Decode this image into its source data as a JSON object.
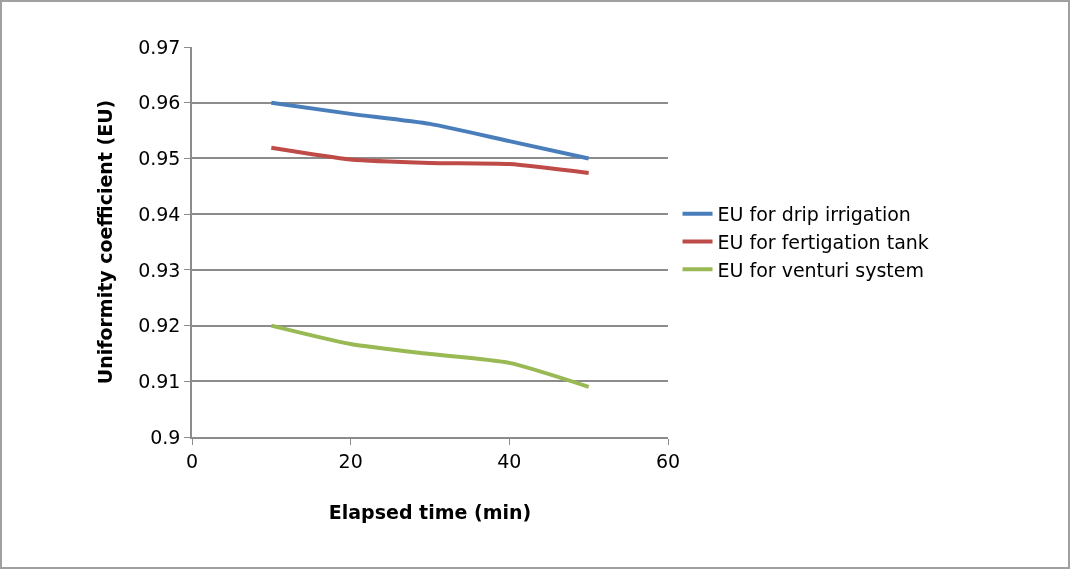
{
  "chart_data": {
    "type": "line",
    "xlabel": "Elapsed time (min)",
    "ylabel": "Uniformity coefficient (EU)",
    "x": [
      10,
      20,
      30,
      40,
      50
    ],
    "series": [
      {
        "name": "EU for drip irrigation",
        "color": "#4a7ebb",
        "values": [
          0.96,
          0.958,
          0.9562,
          0.9531,
          0.95
        ]
      },
      {
        "name": "EU for fertigation tank",
        "color": "#be4b48",
        "values": [
          0.9519,
          0.9498,
          0.9492,
          0.949,
          0.9474
        ]
      },
      {
        "name": "EU for venturi system",
        "color": "#98b954",
        "values": [
          0.92,
          0.9167,
          0.9149,
          0.9133,
          0.909
        ]
      }
    ],
    "xlim": [
      0,
      60
    ],
    "xticks": [
      0,
      20,
      40,
      60
    ],
    "ylim": [
      0.9,
      0.97
    ],
    "yticks": [
      {
        "value": 0.9,
        "label": "0.9"
      },
      0.91,
      0.92,
      0.93,
      0.94,
      0.95,
      0.96,
      0.97
    ],
    "grid": "y",
    "legend": "right",
    "marker": "none",
    "line_style": "solid"
  }
}
